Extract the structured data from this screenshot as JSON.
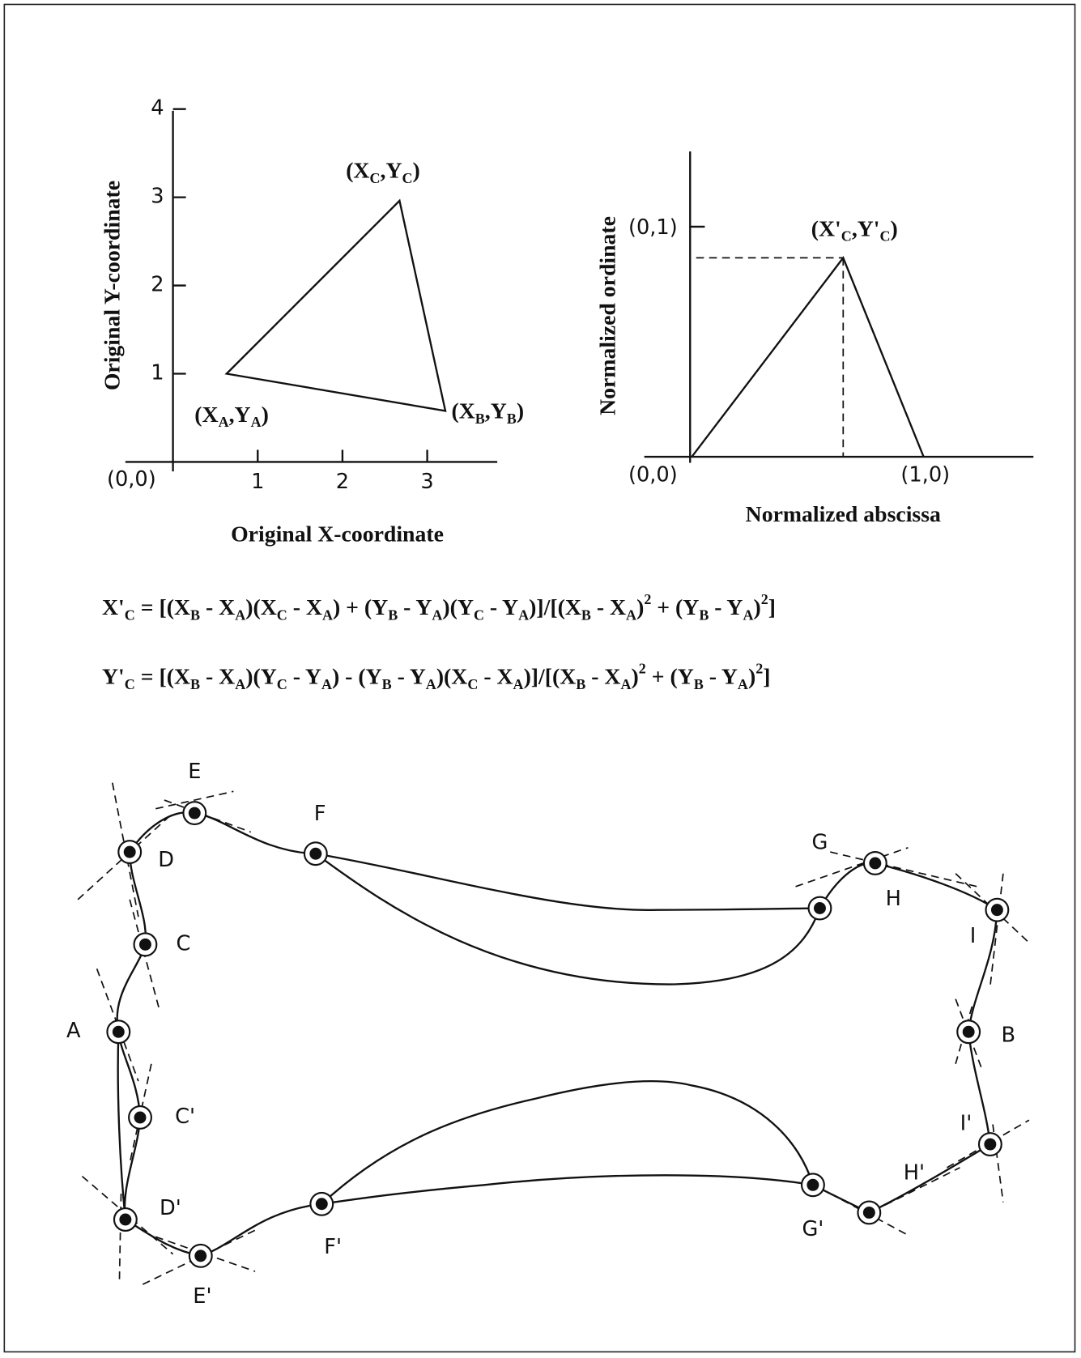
{
  "plot_original": {
    "y_axis_label": "Original Y-coordinate",
    "x_axis_label": "Original X-coordinate",
    "origin_label": "(0,0)",
    "yticks": [
      1,
      2,
      3,
      4
    ],
    "xticks": [
      1,
      2,
      3
    ],
    "points": [
      [
        "(X",
        "A",
        ",Y",
        "A",
        ")"
      ],
      [
        "(X",
        "B",
        ",Y",
        "B",
        ")"
      ],
      [
        "(X",
        "C",
        ",Y",
        "C",
        ")"
      ]
    ]
  },
  "plot_normalized": {
    "y_axis_label": "Normalized ordinate",
    "x_axis_label": "Normalized abscissa",
    "origin_label": "(0,0)",
    "ytick_label": "(0,1)",
    "xtick_label": "(1,0)",
    "point": [
      "(X'",
      "C",
      ",Y'",
      "C",
      ")"
    ]
  },
  "equations": [
    [
      "X'",
      "C",
      " = [(X",
      "B",
      " - X",
      "A",
      ")(X",
      "C",
      " - X",
      "A",
      ") + (Y",
      "B",
      " - Y",
      "A",
      ")(Y",
      "C",
      " - Y",
      "A",
      ")]/[(X",
      "B",
      " - X",
      "A",
      ")",
      "2",
      " + (Y",
      "B",
      " - Y",
      "A",
      ")",
      "2",
      "]"
    ],
    [
      "Y'",
      "C",
      " = [(X",
      "B",
      " - X",
      "A",
      ")(Y",
      "C",
      " - Y",
      "A",
      ") - (Y",
      "B",
      " - Y",
      "A",
      ")(X",
      "C",
      " - X",
      "A",
      ")]/[(X",
      "B",
      " - X",
      "A",
      ")",
      "2",
      " + (Y",
      "B",
      " - Y",
      "A",
      ")",
      "2",
      "]"
    ]
  ],
  "contour": {
    "nodes": [
      "A",
      "B",
      "C",
      "C'",
      "D",
      "D'",
      "E",
      "E'",
      "F",
      "F'",
      "G",
      "G'",
      "H",
      "H'",
      "I",
      "I'"
    ]
  }
}
